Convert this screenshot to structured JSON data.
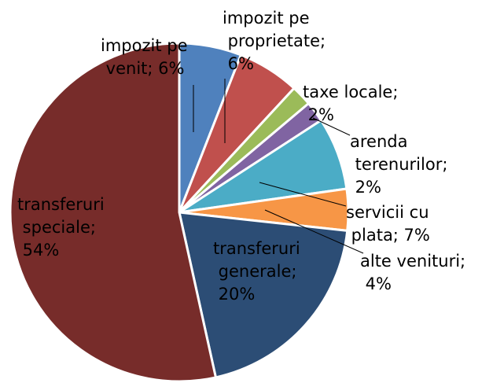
{
  "chart_data": {
    "type": "pie",
    "values": [
      6,
      6,
      2,
      2,
      7,
      4,
      20,
      54
    ],
    "value_labels": [
      "impozit pe venit; 6%",
      "impozit pe proprietate; 6%",
      "taxe locale; 2%",
      "arenda terenurilor; 2%",
      "servicii cu plata; 7%",
      "alte venituri; 4%",
      "transferuri generale; 20%",
      "transferuri speciale; 54%"
    ],
    "colors": [
      "#4f81bd",
      "#c0504d",
      "#9bbb59",
      "#8064a2",
      "#4bacc6",
      "#f79646",
      "#2c4d75",
      "#772c2a"
    ]
  }
}
